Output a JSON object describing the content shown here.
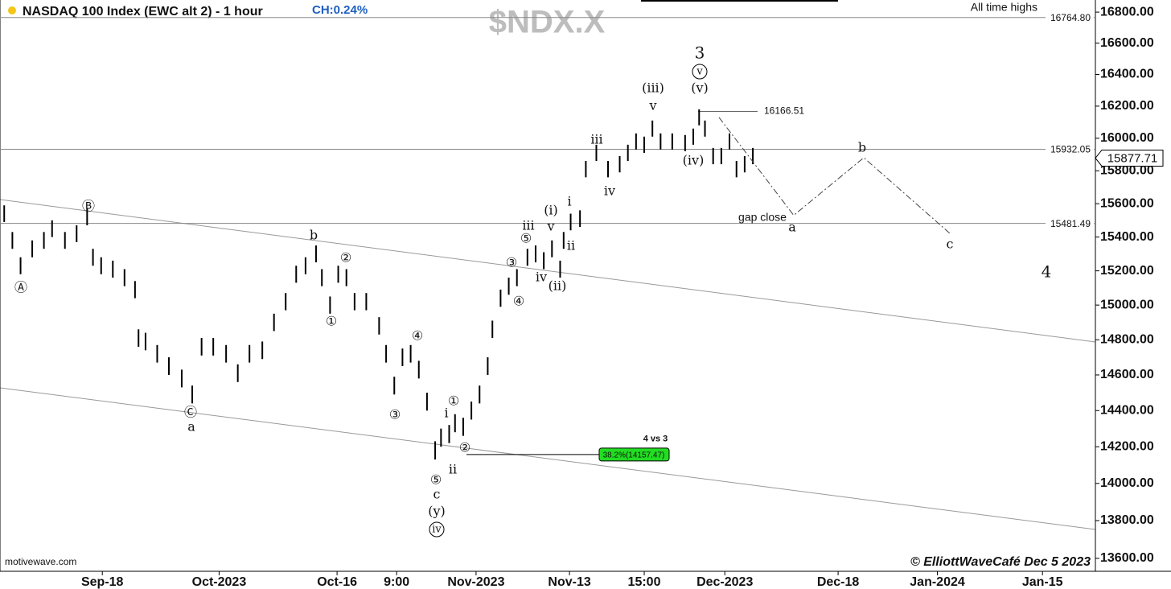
{
  "chart_data": {
    "type": "range",
    "title": "NASDAQ 100 Index (EWC alt 2) - 1 hour",
    "change": "CH:0.24%",
    "symbol": "$NDX.X",
    "top_note": "All time highs",
    "source": "motivewave.com",
    "credit": "© ElliottWaveCafé Dec 5 2023",
    "log": true,
    "xlim": [
      -8.76,
      85.03
    ],
    "ylim": [
      13532,
      16879
    ],
    "yticks": [
      {
        "value": 16800,
        "label": "16800.00"
      },
      {
        "value": 16600,
        "label": "16600.00"
      },
      {
        "value": 16400,
        "label": "16400.00"
      },
      {
        "value": 16200,
        "label": "16200.00"
      },
      {
        "value": 16000,
        "label": "16000.00"
      },
      {
        "value": 15800,
        "label": "15800.00"
      },
      {
        "value": 15600,
        "label": "15600.00"
      },
      {
        "value": 15400,
        "label": "15400.00"
      },
      {
        "value": 15200,
        "label": "15200.00"
      },
      {
        "value": 15000,
        "label": "15000.00"
      },
      {
        "value": 14800,
        "label": "14800.00"
      },
      {
        "value": 14600,
        "label": "14600.00"
      },
      {
        "value": 14400,
        "label": "14400.00"
      },
      {
        "value": 14200,
        "label": "14200.00"
      },
      {
        "value": 14000,
        "label": "14000.00"
      },
      {
        "value": 13800,
        "label": "13800.00"
      },
      {
        "value": 13600,
        "label": "13600.00"
      }
    ],
    "xticks": [
      {
        "value": 0,
        "label": "Sep-18"
      },
      {
        "value": 10,
        "label": "Oct-2023"
      },
      {
        "value": 20.1,
        "label": "Oct-16"
      },
      {
        "value": 25.2,
        "label": "9:00"
      },
      {
        "value": 32,
        "label": "Nov-2023"
      },
      {
        "value": 40,
        "label": "Nov-13"
      },
      {
        "value": 46.4,
        "label": "15:00"
      },
      {
        "value": 53.3,
        "label": "Dec-2023"
      },
      {
        "value": 63,
        "label": "Dec-18"
      },
      {
        "value": 71.5,
        "label": "Jan-2024"
      },
      {
        "value": 80.5,
        "label": "Jan-15"
      }
    ],
    "color": "#000000",
    "bars": {
      "x": [
        -8.4,
        -7.7,
        -7.0,
        -6.0,
        -5.0,
        -4.3,
        -3.2,
        -2.2,
        -1.3,
        -0.8,
        -0.1,
        0.9,
        1.9,
        2.8,
        3.1,
        3.7,
        4.7,
        5.7,
        6.8,
        7.7,
        8.5,
        9.5,
        10.6,
        11.6,
        12.6,
        13.7,
        14.7,
        15.7,
        16.6,
        17.4,
        18.3,
        18.8,
        19.5,
        20.2,
        20.9,
        21.6,
        22.6,
        23.7,
        24.3,
        25.0,
        25.7,
        26.4,
        27.1,
        27.8,
        28.5,
        29.0,
        29.7,
        30.2,
        30.9,
        31.6,
        32.3,
        33.0,
        33.4,
        34.1,
        34.8,
        35.5,
        36.4,
        37.1,
        37.8,
        38.5,
        39.2,
        39.5,
        40.1,
        40.9,
        41.4,
        42.3,
        43.3,
        44.3,
        45.0,
        45.7,
        46.4,
        47.1,
        47.8,
        48.8,
        49.9,
        50.6,
        51.1,
        51.6,
        52.3,
        53.0,
        53.7,
        54.3,
        55.0,
        55.7
      ],
      "high": [
        15590,
        15430,
        15280,
        15380,
        15430,
        15500,
        15430,
        15470,
        15570,
        15330,
        15280,
        15260,
        15210,
        15140,
        14860,
        14840,
        14770,
        14700,
        14630,
        14540,
        14810,
        14810,
        14770,
        14660,
        14770,
        14790,
        14950,
        15070,
        15230,
        15280,
        15350,
        15210,
        15050,
        15230,
        15210,
        15070,
        15070,
        14930,
        14770,
        14590,
        14750,
        14770,
        14680,
        14500,
        14230,
        14300,
        14320,
        14380,
        14360,
        14450,
        14540,
        14700,
        14910,
        15090,
        15160,
        15210,
        15330,
        15350,
        15310,
        15380,
        15260,
        15430,
        15540,
        15560,
        15860,
        15960,
        15860,
        15890,
        15960,
        16030,
        16010,
        16110,
        16030,
        16030,
        16020,
        16060,
        16180,
        16110,
        15940,
        15940,
        16030,
        15860,
        15890,
        15940
      ],
      "low": [
        15490,
        15330,
        15180,
        15280,
        15330,
        15400,
        15330,
        15370,
        15470,
        15230,
        15180,
        15160,
        15110,
        15040,
        14760,
        14740,
        14670,
        14600,
        14530,
        14440,
        14710,
        14710,
        14670,
        14560,
        14670,
        14690,
        14850,
        14970,
        15130,
        15180,
        15250,
        15110,
        14950,
        15130,
        15110,
        14970,
        14970,
        14830,
        14670,
        14490,
        14650,
        14670,
        14580,
        14400,
        14130,
        14200,
        14220,
        14280,
        14260,
        14350,
        14440,
        14600,
        14810,
        14990,
        15060,
        15110,
        15230,
        15250,
        15210,
        15280,
        15160,
        15330,
        15440,
        15460,
        15760,
        15860,
        15760,
        15790,
        15860,
        15930,
        15910,
        16010,
        15930,
        15930,
        15920,
        15960,
        16080,
        16010,
        15840,
        15840,
        15930,
        15760,
        15790,
        15840
      ]
    },
    "levels": [
      {
        "value": 16764.8,
        "label": "16764.80"
      },
      15932.05,
      15481.49
    ],
    "high_marker": 16166.51,
    "last": 15877.71,
    "fib": {
      "value": 14157.47,
      "label": "38.2%(14157.47)",
      "title": "4 vs 3"
    },
    "projection": {
      "x": [
        52.8,
        59.2,
        65.2,
        72.6
      ],
      "values": [
        16130,
        15530,
        15880,
        15420
      ]
    },
    "annotations": [
      "Ⓑ",
      "Ⓐ",
      "b",
      "②",
      "①",
      "Ⓒ",
      "a",
      "④",
      "③",
      "①",
      "i",
      "②",
      "ii",
      "⑤",
      "c",
      "(y)",
      "iv",
      "③",
      "④",
      "iii",
      "⑤",
      "(i)",
      "v",
      "iv",
      "(ii)",
      "i",
      "ii",
      "iii",
      "iv",
      "(iii)",
      "v",
      "3",
      "v",
      "(v)",
      "(iv)",
      "gap close",
      "a",
      "b",
      "c",
      "4"
    ]
  }
}
